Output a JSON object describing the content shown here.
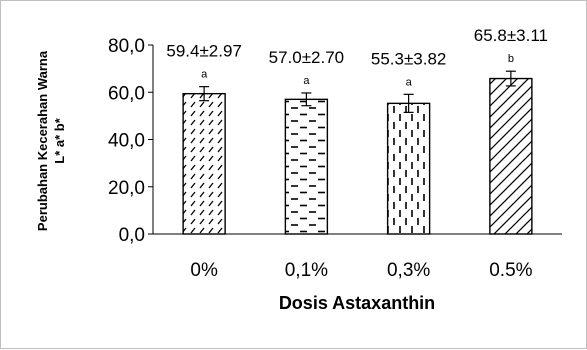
{
  "chart_data": {
    "type": "bar",
    "categories": [
      "0%",
      "0,1%",
      "0,3%",
      "0.5%"
    ],
    "values": [
      59.4,
      57.0,
      55.3,
      65.8
    ],
    "errors": [
      2.97,
      2.7,
      3.82,
      3.11
    ],
    "data_labels": [
      "59.4±2.97",
      "57.0±2.70",
      "55.3±3.82",
      "65.8±3.11"
    ],
    "significance_letters": [
      "a",
      "a",
      "a",
      "b"
    ],
    "patterns": [
      "diagonal-dashes",
      "horizontal-dashes",
      "vertical-dashes",
      "crosshatch"
    ],
    "xlabel": "Dosis Astaxanthin",
    "ylabel_line1": "Perubahan Kecerahan Warna",
    "ylabel_line2": "L* a* b*",
    "ylim": [
      0,
      80
    ],
    "yticks": [
      0,
      20,
      40,
      60,
      80
    ],
    "ytick_labels": [
      "0,0",
      "20,0",
      "40,0",
      "60,0",
      "80,0"
    ],
    "grid": false,
    "legend": "none",
    "bar_fill": "#ffffff",
    "bar_stroke": "#000000"
  }
}
